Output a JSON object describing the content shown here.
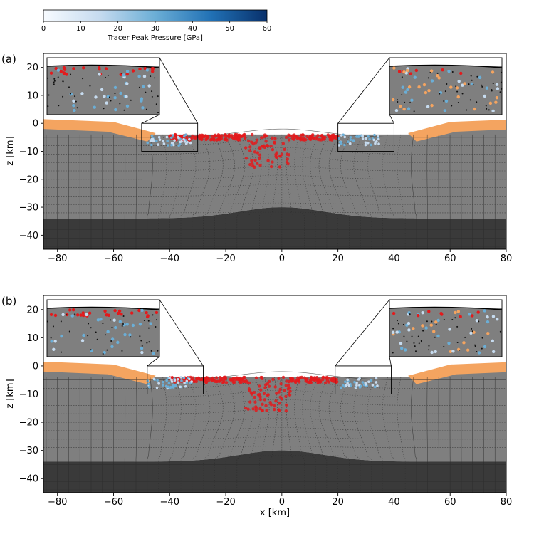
{
  "chart_data": [
    {
      "type": "colorbar",
      "label": "Tracer Peak Pressure [GPa]",
      "range": [
        0,
        60
      ],
      "ticks": [
        0,
        10,
        20,
        30,
        40,
        50,
        60
      ],
      "colors": [
        "#f7fbff",
        "#6baed6",
        "#08306b"
      ]
    },
    {
      "type": "cross-section",
      "panel_label": "(a)",
      "xlabel": "",
      "ylabel": "z [km]",
      "xlim": [
        -85,
        80
      ],
      "ylim": [
        -45,
        25
      ],
      "xticks": [
        -80,
        -60,
        -40,
        -20,
        0,
        20,
        40,
        60,
        80
      ],
      "yticks": [
        20,
        10,
        0,
        -10,
        -20,
        -30,
        -40
      ],
      "zoom_boxes": [
        {
          "name": "left",
          "x": [
            -50,
            -30
          ],
          "y": [
            -10,
            0
          ]
        },
        {
          "name": "right",
          "x": [
            20,
            40
          ],
          "y": [
            -10,
            0
          ]
        }
      ],
      "moho_depth": -34,
      "central_uplift": -30,
      "material_colors": {
        "crust": "#7f7f7f",
        "mantle": "#3a3a3a",
        "sediment": "#f4a460",
        "melt": "#e31a1c"
      }
    },
    {
      "type": "cross-section",
      "panel_label": "(b)",
      "xlabel": "x [km]",
      "ylabel": "z [km]",
      "xlim": [
        -85,
        80
      ],
      "ylim": [
        -45,
        25
      ],
      "xticks": [
        -80,
        -60,
        -40,
        -20,
        0,
        20,
        40,
        60,
        80
      ],
      "yticks": [
        20,
        10,
        0,
        -10,
        -20,
        -30,
        -40
      ],
      "zoom_boxes": [
        {
          "name": "left",
          "x": [
            -48,
            -28
          ],
          "y": [
            -10,
            0
          ]
        },
        {
          "name": "right",
          "x": [
            19,
            39
          ],
          "y": [
            -10,
            0
          ]
        }
      ],
      "moho_depth": -34,
      "central_uplift": -32,
      "material_colors": {
        "crust": "#7f7f7f",
        "mantle": "#3a3a3a",
        "sediment": "#f4a460",
        "melt": "#e31a1c"
      }
    }
  ]
}
